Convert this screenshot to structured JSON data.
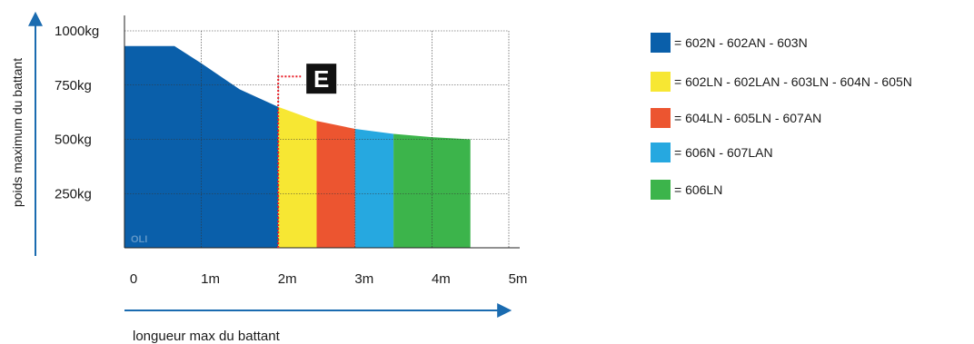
{
  "chart_data": {
    "type": "area",
    "xlabel": "longueur max du battant",
    "ylabel": "poids maximum du battant",
    "xlim": [
      0,
      5
    ],
    "ylim": [
      0,
      1000
    ],
    "x_ticks": [
      {
        "value": 0,
        "label": "0"
      },
      {
        "value": 1,
        "label": "1m"
      },
      {
        "value": 2,
        "label": "2m"
      },
      {
        "value": 3,
        "label": "3m"
      },
      {
        "value": 4,
        "label": "4m"
      },
      {
        "value": 5,
        "label": "5m"
      }
    ],
    "y_ticks": [
      {
        "value": 250,
        "label": "250kg"
      },
      {
        "value": 500,
        "label": "500kg"
      },
      {
        "value": 750,
        "label": "750kg"
      },
      {
        "value": 1000,
        "label": "1000kg"
      }
    ],
    "grid": true,
    "curve": [
      {
        "x": 0,
        "y": 930
      },
      {
        "x": 0.65,
        "y": 930
      },
      {
        "x": 1.0,
        "y": 850
      },
      {
        "x": 1.5,
        "y": 730
      },
      {
        "x": 2.0,
        "y": 650
      },
      {
        "x": 2.5,
        "y": 585
      },
      {
        "x": 3.0,
        "y": 548
      },
      {
        "x": 3.5,
        "y": 525
      },
      {
        "x": 4.0,
        "y": 510
      },
      {
        "x": 4.5,
        "y": 500
      }
    ],
    "segments": [
      {
        "name": "= 602N - 602AN - 603N",
        "x_range": [
          0,
          2.0
        ],
        "color": "#0a5faa"
      },
      {
        "name": "= 602LN - 602LAN - 603LN - 604N - 605N",
        "x_range": [
          2.0,
          2.5
        ],
        "color": "#f7e733"
      },
      {
        "name": "= 604LN - 605LN - 607AN",
        "x_range": [
          2.5,
          3.0
        ],
        "color": "#ec5530"
      },
      {
        "name": "= 606N - 607LAN",
        "x_range": [
          3.0,
          3.5
        ],
        "color": "#26a8e0"
      },
      {
        "name": "= 606LN",
        "x_range": [
          3.5,
          4.5
        ],
        "color": "#3cb44b"
      }
    ],
    "annotations": [
      {
        "text": "E",
        "x": 2.0,
        "y": 790,
        "style": "black badge, red dotted leader"
      },
      {
        "text": "OLI",
        "x": 0.0,
        "y": 0,
        "style": "faint watermark"
      }
    ],
    "legend_position": "right"
  },
  "colors": {
    "axis_arrow": "#1a6bb0",
    "leader_line": "#e8202a",
    "grid": "#333333"
  }
}
